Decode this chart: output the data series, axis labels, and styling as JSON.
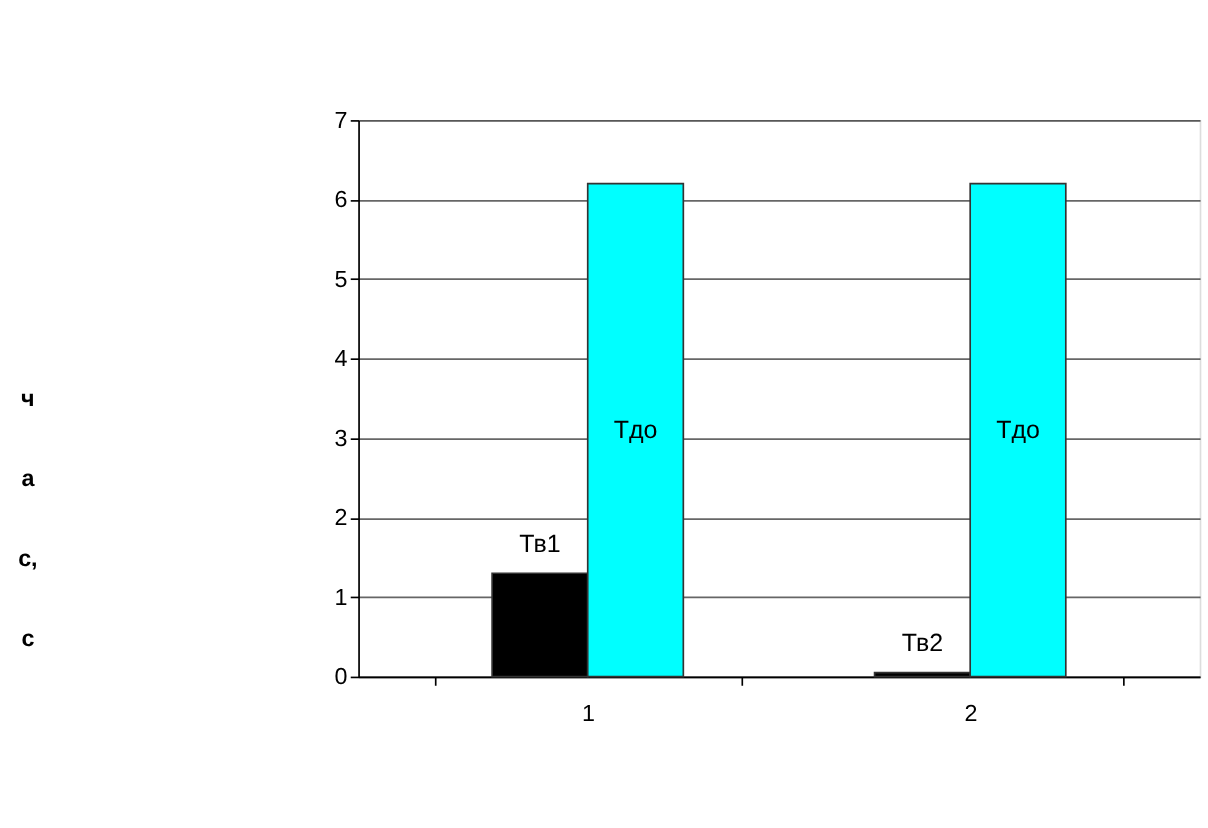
{
  "chart_data": {
    "type": "bar",
    "ylabel": "час, с",
    "categories": [
      "1",
      "2"
    ],
    "series": [
      {
        "color": "#000000",
        "values": [
          1.3,
          0.05
        ],
        "value_labels": [
          "Тв1",
          "Тв2"
        ]
      },
      {
        "color": "#00ffff",
        "values": [
          6.2,
          6.2
        ],
        "value_labels": [
          "Тдо",
          "Тдо"
        ]
      }
    ],
    "ylim": [
      0,
      7
    ],
    "yticks": [
      0,
      1,
      2,
      3,
      4,
      5,
      6,
      7
    ],
    "grid": "y",
    "legend": false
  }
}
